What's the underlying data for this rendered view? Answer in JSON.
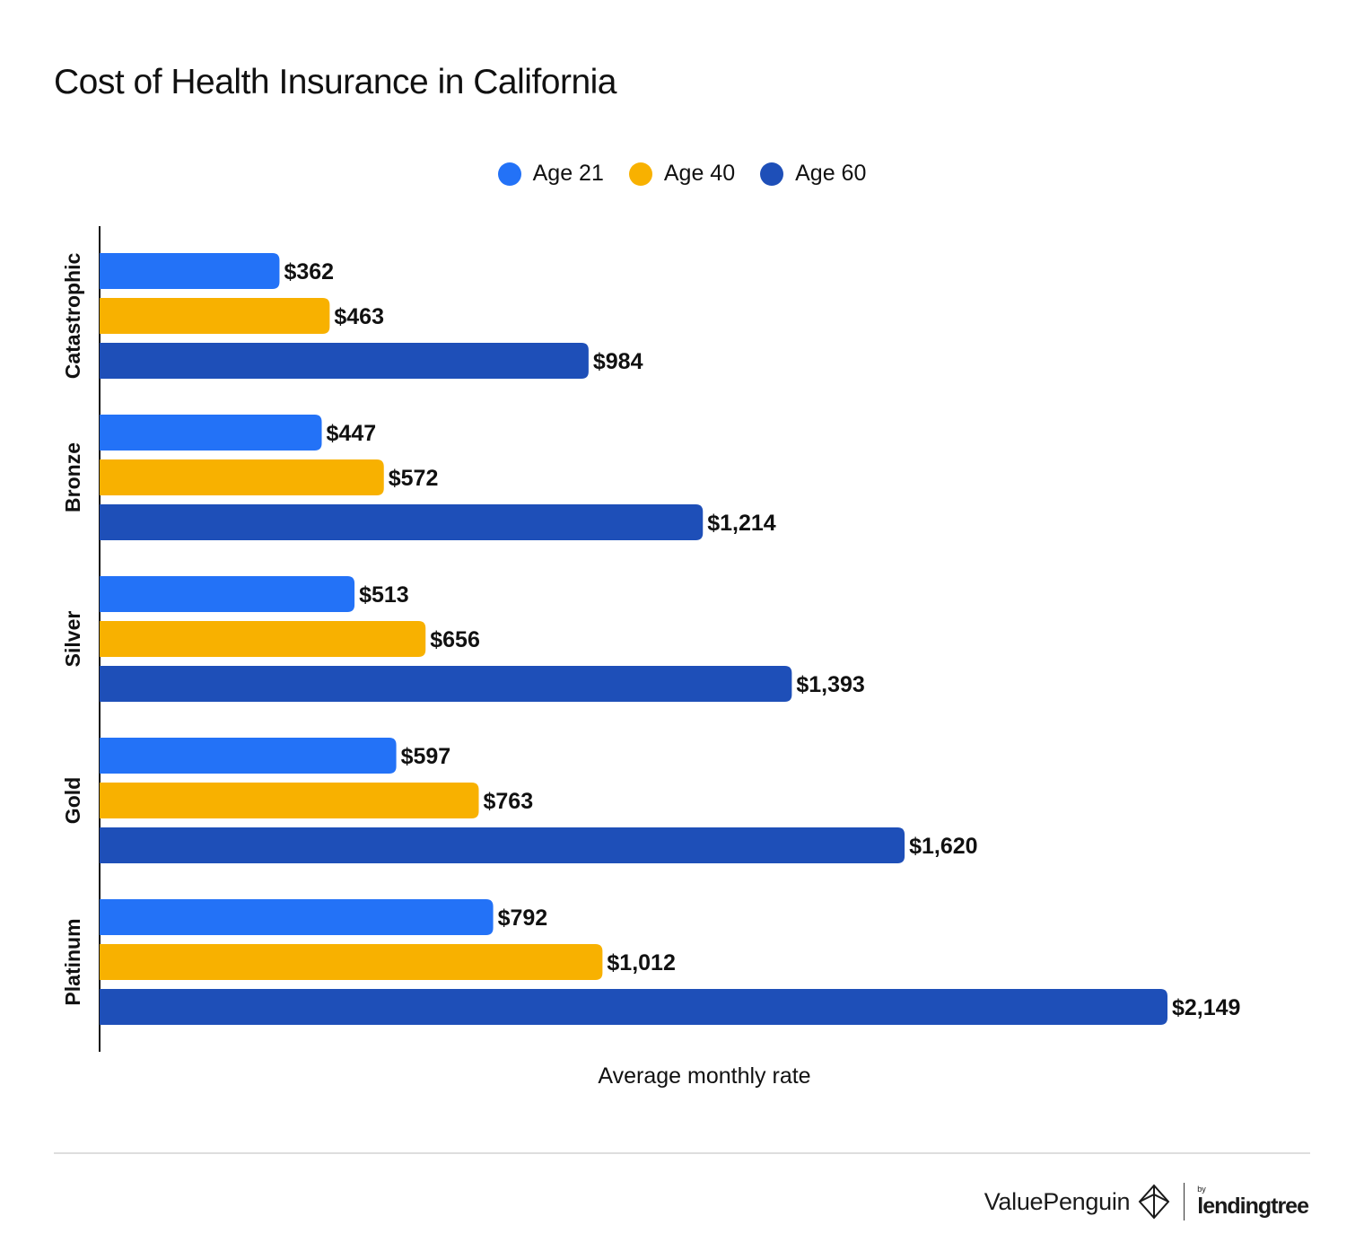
{
  "chart_data": {
    "type": "bar",
    "orientation": "horizontal",
    "title": "Cost of Health Insurance in California",
    "xlabel": "Average monthly rate",
    "ylabel": "",
    "categories": [
      "Catastrophic",
      "Bronze",
      "Silver",
      "Gold",
      "Platinum"
    ],
    "series": [
      {
        "name": "Age 21",
        "color": "#2372f7",
        "values": [
          362,
          447,
          513,
          597,
          792
        ],
        "labels": [
          "$362",
          "$447",
          "$513",
          "$597",
          "$792"
        ]
      },
      {
        "name": "Age 40",
        "color": "#f8b100",
        "values": [
          463,
          572,
          656,
          763,
          1012
        ],
        "labels": [
          "$463",
          "$572",
          "$656",
          "$763",
          "$1,012"
        ]
      },
      {
        "name": "Age 60",
        "color": "#1e4fb8",
        "values": [
          984,
          1214,
          1393,
          1620,
          2149
        ],
        "labels": [
          "$984",
          "$1,214",
          "$1,393",
          "$1,620",
          "$2,149"
        ]
      }
    ],
    "xlim": [
      0,
      2149
    ],
    "grid": false,
    "legend_position": "top-center"
  },
  "branding": {
    "valuepenguin": "ValuePenguin",
    "by": "by",
    "lendingtree": "lendingtree"
  }
}
